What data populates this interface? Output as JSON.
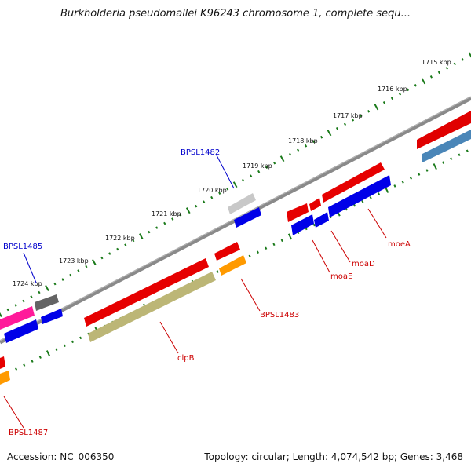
{
  "title": "Burkholderia pseudomallei K96243 chromosome 1, complete sequ...",
  "footer": {
    "accession": "Accession: NC_006350",
    "summary": "Topology: circular; Length: 4,074,542 bp; Genes: 3,468"
  },
  "ruler": {
    "labels": [
      "1715 kbp",
      "1716 kbp",
      "1717 kbp",
      "1718 kbp",
      "1719 kbp",
      "1720 kbp",
      "1721 kbp",
      "1722 kbp",
      "1723 kbp",
      "1724 kbp"
    ]
  },
  "colors": {
    "backbone": "#808080",
    "ruler_tick": "#1a7a1a",
    "label_red": "#cc0000",
    "label_blue": "#0000cc",
    "feature_red": "#ee0000",
    "feature_blue": "#0000ee",
    "feature_orange": "#ff9900",
    "feature_olive": "#bdb76b",
    "feature_pink": "#ff1493",
    "feature_gray": "#666666",
    "feature_lightgray": "#c0c0c0",
    "feature_steelblue": "#4682b4"
  },
  "gene_labels": [
    {
      "text": "BPSL1482",
      "color": "blue"
    },
    {
      "text": "BPSL1485",
      "color": "blue"
    },
    {
      "text": "moeA",
      "color": "red"
    },
    {
      "text": "moaD",
      "color": "red"
    },
    {
      "text": "moaE",
      "color": "red"
    },
    {
      "text": "BPSL1483",
      "color": "red"
    },
    {
      "text": "clpB",
      "color": "red"
    },
    {
      "text": "BPSL1487",
      "color": "red"
    }
  ]
}
